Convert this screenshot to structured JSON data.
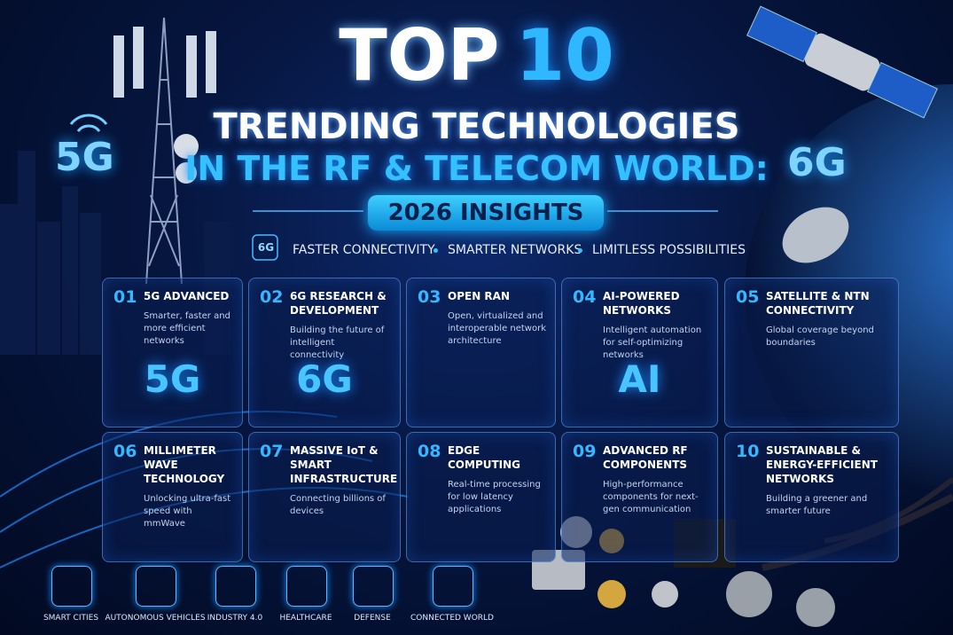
{
  "header": {
    "title_word": "TOP",
    "title_number": "10",
    "line1": "TRENDING TECHNOLOGIES",
    "line2": "IN THE RF & TELECOM WORLD:",
    "badge": "2026 INSIGHTS"
  },
  "side_labels": {
    "left": "5G",
    "right": "6G"
  },
  "tagline": {
    "icon": "6G",
    "items": [
      "FASTER CONNECTIVITY",
      "SMARTER NETWORKS",
      "LIMITLESS POSSIBILITIES"
    ]
  },
  "cards": [
    {
      "number": "01",
      "title": "5G ADVANCED",
      "description": "Smarter, faster and more efficient networks",
      "visual": "5G"
    },
    {
      "number": "02",
      "title": "6G RESEARCH & DEVELOPMENT",
      "description": "Building the future of intelligent connectivity",
      "visual": "6G"
    },
    {
      "number": "03",
      "title": "OPEN RAN",
      "description": "Open, virtualized and interoperable network architecture"
    },
    {
      "number": "04",
      "title": "AI-POWERED NETWORKS",
      "description": "Intelligent automation for self-optimizing networks",
      "visual": "AI"
    },
    {
      "number": "05",
      "title": "SATELLITE & NTN CONNECTIVITY",
      "description": "Global coverage beyond boundaries"
    },
    {
      "number": "06",
      "title": "MILLIMETER WAVE TECHNOLOGY",
      "description": "Unlocking ultra-fast speed with mmWave"
    },
    {
      "number": "07",
      "title": "MASSIVE IoT & SMART INFRASTRUCTURE",
      "description": "Connecting billions of devices"
    },
    {
      "number": "08",
      "title": "EDGE COMPUTING",
      "description": "Real-time processing for low latency applications"
    },
    {
      "number": "09",
      "title": "ADVANCED RF COMPONENTS",
      "description": "High-performance components for next-gen communication"
    },
    {
      "number": "10",
      "title": "SUSTAINABLE & ENERGY-EFFICIENT NETWORKS",
      "description": "Building a greener and smarter future"
    }
  ],
  "footer": [
    "SMART CITIES",
    "AUTONOMOUS VEHICLES",
    "INDUSTRY 4.0",
    "HEALTHCARE",
    "DEFENSE",
    "CONNECTED WORLD"
  ]
}
